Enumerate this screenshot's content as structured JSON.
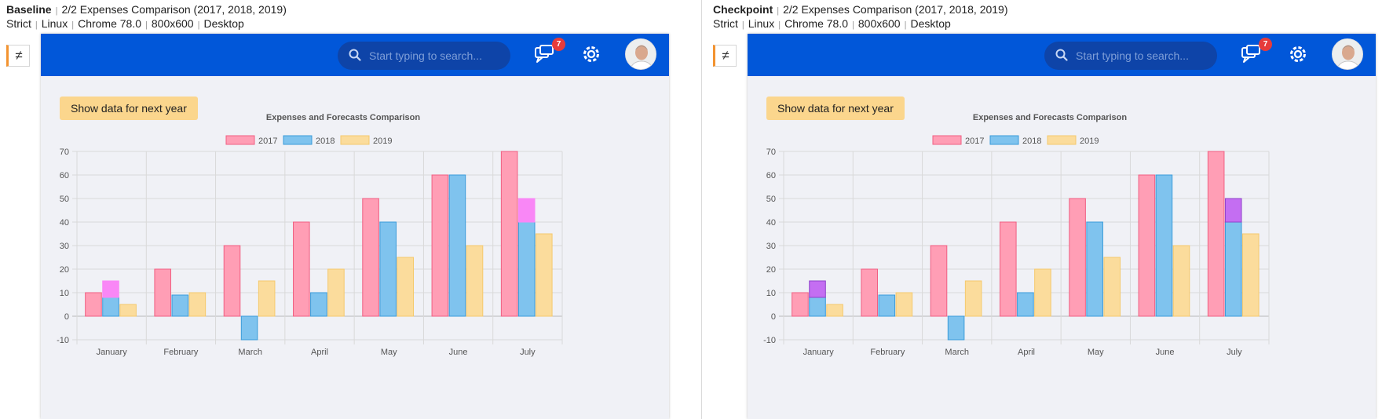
{
  "panes": [
    {
      "id": "baseline",
      "heading": "Baseline",
      "title": "2/2 Expenses Comparison (2017, 2018, 2019)",
      "env": [
        "Strict",
        "Linux",
        "Chrome 78.0",
        "800x600",
        "Desktop"
      ],
      "diff_symbol": "≠",
      "search_placeholder": "Start typing to search...",
      "notification_count": "7",
      "next_year_button": "Show data for next year",
      "overlay_color": "#f987f6",
      "chart_data": {
        "type": "bar",
        "title": "Expenses and Forecasts Comparison",
        "categories": [
          "January",
          "February",
          "March",
          "April",
          "May",
          "June",
          "July"
        ],
        "series": [
          {
            "name": "2017",
            "color": "#ff9eb5",
            "border": "#f05f82",
            "values": [
              10,
              20,
              30,
              40,
              50,
              60,
              70
            ]
          },
          {
            "name": "2018",
            "color": "#7fc3ee",
            "border": "#3a9bd9",
            "values": [
              8,
              9,
              -10,
              10,
              40,
              60,
              40
            ]
          },
          {
            "name": "2019",
            "color": "#fbdc9c",
            "border": "#f5c96d",
            "values": [
              5,
              10,
              15,
              20,
              25,
              30,
              35
            ]
          }
        ],
        "highlight": [
          {
            "category": "January",
            "from": 8,
            "to": 15
          },
          {
            "category": "July",
            "from": 40,
            "to": 50
          }
        ],
        "ylim": [
          -10,
          70
        ],
        "yticks": [
          "70",
          "60",
          "50",
          "40",
          "30",
          "20",
          "10",
          "0",
          "-10"
        ],
        "legend": "top",
        "grid": true
      }
    },
    {
      "id": "checkpoint",
      "heading": "Checkpoint",
      "title": "2/2 Expenses Comparison (2017, 2018, 2019)",
      "env": [
        "Strict",
        "Linux",
        "Chrome 78.0",
        "800x600",
        "Desktop"
      ],
      "diff_symbol": "≠",
      "search_placeholder": "Start typing to search...",
      "notification_count": "7",
      "next_year_button": "Show data for next year",
      "overlay_color": "#c46ef2",
      "chart_data": {
        "type": "bar",
        "title": "Expenses and Forecasts Comparison",
        "categories": [
          "January",
          "February",
          "March",
          "April",
          "May",
          "June",
          "July"
        ],
        "series": [
          {
            "name": "2017",
            "color": "#ff9eb5",
            "border": "#f05f82",
            "values": [
              10,
              20,
              30,
              40,
              50,
              60,
              70
            ]
          },
          {
            "name": "2018",
            "color": "#7fc3ee",
            "border": "#3a9bd9",
            "values": [
              8,
              9,
              -10,
              10,
              40,
              60,
              40
            ]
          },
          {
            "name": "2019",
            "color": "#fbdc9c",
            "border": "#f5c96d",
            "values": [
              5,
              10,
              15,
              20,
              25,
              30,
              35
            ]
          }
        ],
        "highlight": [
          {
            "category": "January",
            "from": 8,
            "to": 15
          },
          {
            "category": "July",
            "from": 40,
            "to": 50
          }
        ],
        "ylim": [
          -10,
          70
        ],
        "yticks": [
          "70",
          "60",
          "50",
          "40",
          "30",
          "20",
          "10",
          "0",
          "-10"
        ],
        "legend": "top",
        "grid": true
      }
    }
  ]
}
